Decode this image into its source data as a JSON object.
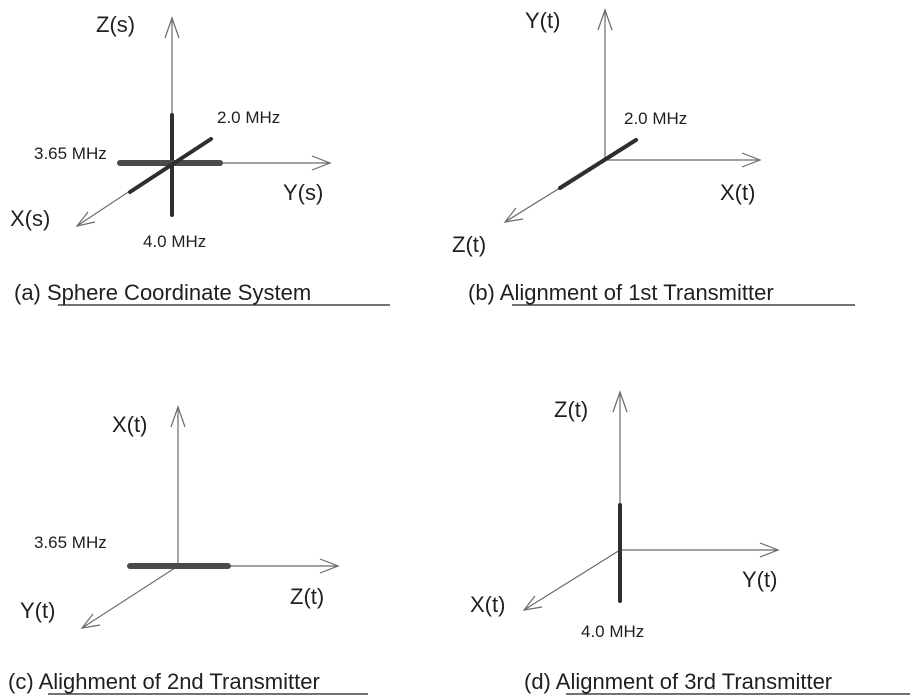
{
  "panels": {
    "a": {
      "axes": {
        "z": "Z(s)",
        "y": "Y(s)",
        "x": "X(s)"
      },
      "freqs": {
        "f1": "2.0 MHz",
        "f2": "3.65 MHz",
        "f3": "4.0 MHz"
      },
      "caption": {
        "prefix": "(a) ",
        "title": "Sphere Coordinate System"
      }
    },
    "b": {
      "axes": {
        "up": "Y(t)",
        "right": "X(t)",
        "diag": "Z(t)"
      },
      "freqs": {
        "f1": "2.0 MHz"
      },
      "caption": {
        "prefix": "(b) ",
        "title": "Alignment of 1st Transmitter"
      }
    },
    "c": {
      "axes": {
        "up": "X(t)",
        "right": "Z(t)",
        "diag": "Y(t)"
      },
      "freqs": {
        "f1": "3.65 MHz"
      },
      "caption": {
        "prefix": "(c) ",
        "title": "Alighment of 2nd Transmitter"
      }
    },
    "d": {
      "axes": {
        "up": "Z(t)",
        "right": "Y(t)",
        "diag": "X(t)"
      },
      "freqs": {
        "f1": "4.0 MHz"
      },
      "caption": {
        "prefix": "(d) ",
        "title": "Alignment of 3rd Transmitter"
      }
    }
  },
  "colors": {
    "axis": "#6b6b6b",
    "coil": "#3a3a3a",
    "text": "#1f1f1f",
    "background": "#ffffff"
  }
}
